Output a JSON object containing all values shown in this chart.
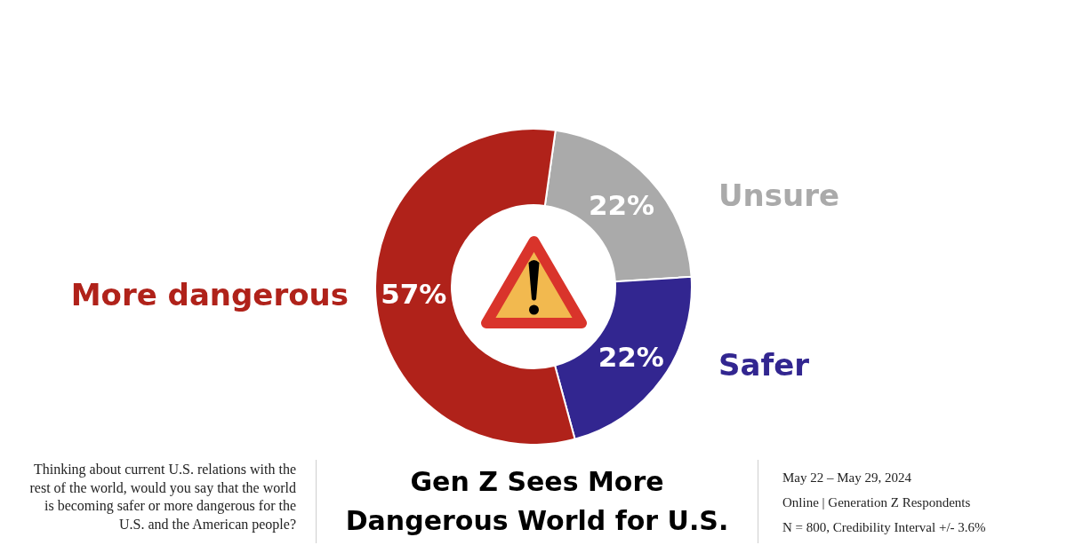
{
  "chart_data": {
    "type": "donut",
    "title": "Gen Z Sees More Dangerous World for U.S.",
    "categories": [
      "Unsure",
      "Safer",
      "More dangerous"
    ],
    "values": [
      22,
      22,
      57
    ],
    "colors": [
      "#aaaaaa",
      "#322690",
      "#b0221a"
    ],
    "value_labels": [
      "22%",
      "22%",
      "57%"
    ],
    "annotations": [
      "Thinking about current U.S. relations with the rest of the world, would you say that the world is becoming safer or more dangerous for the U.S. and the American people?",
      "May 22 – May 29, 2024",
      "Online | Generation Z Respondents",
      "N = 800, Credibility Interval +/- 3.6%"
    ]
  }
}
